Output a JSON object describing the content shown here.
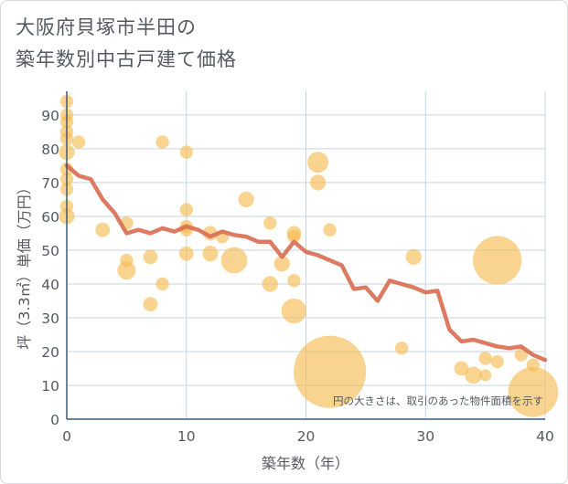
{
  "title_lines": [
    "大阪府貝塚市半田の",
    "築年数別中古戸建て価格"
  ],
  "chart_data": {
    "type": "scatter",
    "title": "大阪府貝塚市半田の築年数別中古戸建て価格",
    "xlabel": "築年数（年）",
    "ylabel": "坪（3.3㎡）単価（万円）",
    "xlim": [
      0,
      40
    ],
    "ylim": [
      0,
      97
    ],
    "x_ticks": [
      0,
      10,
      20,
      30,
      40
    ],
    "y_ticks": [
      0,
      10,
      20,
      30,
      40,
      50,
      60,
      70,
      80,
      90
    ],
    "grid": true,
    "note": "円の大きさは、取引のあった物件面積を示す",
    "colors": {
      "bubble": "#f5b94e",
      "line": "#d96f55",
      "grid": "#c6d5e2",
      "axis": "#3a5a7a",
      "text": "#555a60"
    },
    "series": [
      {
        "kind": "bubble",
        "points": [
          {
            "x": 0,
            "y": 94,
            "s": 1
          },
          {
            "x": 0,
            "y": 90,
            "s": 1
          },
          {
            "x": 0,
            "y": 88,
            "s": 1
          },
          {
            "x": 0,
            "y": 85,
            "s": 1
          },
          {
            "x": 0,
            "y": 83,
            "s": 1
          },
          {
            "x": 0,
            "y": 79,
            "s": 1.2
          },
          {
            "x": 0,
            "y": 74,
            "s": 1
          },
          {
            "x": 0,
            "y": 71,
            "s": 1
          },
          {
            "x": 0,
            "y": 68,
            "s": 1
          },
          {
            "x": 0,
            "y": 63,
            "s": 1
          },
          {
            "x": 0,
            "y": 60,
            "s": 1.2
          },
          {
            "x": 1,
            "y": 82,
            "s": 1
          },
          {
            "x": 3,
            "y": 56,
            "s": 1.1
          },
          {
            "x": 5,
            "y": 58,
            "s": 1
          },
          {
            "x": 5,
            "y": 47,
            "s": 1
          },
          {
            "x": 5,
            "y": 44,
            "s": 1.4
          },
          {
            "x": 7,
            "y": 48,
            "s": 1.1
          },
          {
            "x": 7,
            "y": 34,
            "s": 1.1
          },
          {
            "x": 8,
            "y": 82,
            "s": 1
          },
          {
            "x": 8,
            "y": 40,
            "s": 1
          },
          {
            "x": 10,
            "y": 79,
            "s": 1
          },
          {
            "x": 10,
            "y": 62,
            "s": 1
          },
          {
            "x": 10,
            "y": 57,
            "s": 1
          },
          {
            "x": 10,
            "y": 56,
            "s": 1
          },
          {
            "x": 10,
            "y": 49,
            "s": 1.1
          },
          {
            "x": 12,
            "y": 55,
            "s": 1.1
          },
          {
            "x": 12,
            "y": 49,
            "s": 1.2
          },
          {
            "x": 13,
            "y": 54,
            "s": 1
          },
          {
            "x": 14,
            "y": 47,
            "s": 2
          },
          {
            "x": 15,
            "y": 65,
            "s": 1.2
          },
          {
            "x": 17,
            "y": 58,
            "s": 1
          },
          {
            "x": 17,
            "y": 40,
            "s": 1.2
          },
          {
            "x": 18,
            "y": 46,
            "s": 1.2
          },
          {
            "x": 19,
            "y": 55,
            "s": 1.1
          },
          {
            "x": 19,
            "y": 54,
            "s": 1
          },
          {
            "x": 19,
            "y": 41,
            "s": 1
          },
          {
            "x": 19,
            "y": 32,
            "s": 1.9
          },
          {
            "x": 21,
            "y": 76,
            "s": 1.6
          },
          {
            "x": 21,
            "y": 70,
            "s": 1.2
          },
          {
            "x": 22,
            "y": 56,
            "s": 1
          },
          {
            "x": 22,
            "y": 14,
            "s": 5.5
          },
          {
            "x": 28,
            "y": 21,
            "s": 1
          },
          {
            "x": 29,
            "y": 48,
            "s": 1.2
          },
          {
            "x": 33,
            "y": 15,
            "s": 1.1
          },
          {
            "x": 34,
            "y": 13,
            "s": 1.3
          },
          {
            "x": 35,
            "y": 18,
            "s": 1
          },
          {
            "x": 35,
            "y": 13,
            "s": 0.9
          },
          {
            "x": 36,
            "y": 47,
            "s": 3.7
          },
          {
            "x": 36,
            "y": 17,
            "s": 1
          },
          {
            "x": 38,
            "y": 19,
            "s": 1
          },
          {
            "x": 39,
            "y": 16,
            "s": 1
          },
          {
            "x": 39,
            "y": 8,
            "s": 3.8
          }
        ]
      },
      {
        "kind": "line",
        "x": [
          0,
          1,
          2,
          3,
          4,
          5,
          6,
          7,
          8,
          9,
          10,
          11,
          12,
          13,
          14,
          15,
          16,
          17,
          18,
          19,
          20,
          21,
          22,
          23,
          24,
          25,
          26,
          27,
          28,
          29,
          30,
          31,
          32,
          33,
          34,
          35,
          36,
          37,
          38,
          39,
          40
        ],
        "y": [
          75,
          72,
          71,
          65,
          61,
          55,
          56,
          55,
          56.5,
          55.5,
          57,
          56,
          54,
          55.5,
          54.5,
          54,
          52.5,
          52.5,
          48,
          52.5,
          49.5,
          48.5,
          47,
          45.5,
          38.5,
          39,
          35,
          41,
          40,
          39,
          37.5,
          38,
          26.5,
          23,
          23.5,
          22.5,
          21.5,
          21,
          21.5,
          19,
          17.5
        ]
      }
    ]
  }
}
